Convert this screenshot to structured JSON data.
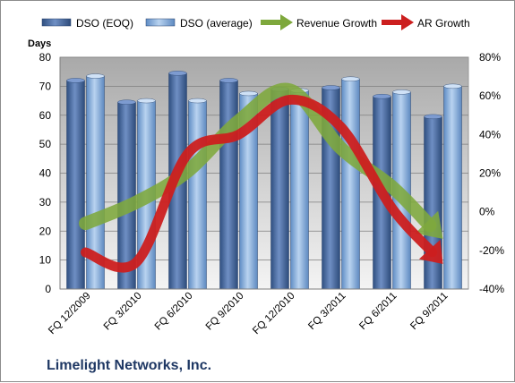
{
  "company": "Limelight Networks, Inc.",
  "chart_data": {
    "type": "bar",
    "categories": [
      "FQ 12/2009",
      "FQ 3/2010",
      "FQ 6/2010",
      "FQ 9/2010",
      "FQ 12/2010",
      "FQ 3/2011",
      "FQ 6/2011",
      "FQ 9/2011"
    ],
    "series": [
      {
        "name": "DSO (EOQ)",
        "type": "bar",
        "axis": "left",
        "color": "#4a6fa8",
        "values": [
          72,
          64.5,
          74.5,
          72,
          69,
          69.5,
          66.5,
          59.5
        ]
      },
      {
        "name": "DSO (average)",
        "type": "bar",
        "axis": "left",
        "color": "#8fb4e0",
        "values": [
          73.5,
          65,
          65,
          67.5,
          68.5,
          72.5,
          68,
          70
        ]
      },
      {
        "name": "Revenue Growth",
        "type": "line-arrow",
        "axis": "right",
        "color": "#7ea83c",
        "values": [
          -6,
          5,
          21,
          47,
          63,
          33,
          13,
          -14
        ]
      },
      {
        "name": "AR Growth",
        "type": "line-arrow",
        "axis": "right",
        "color": "#cc1f1f",
        "values": [
          -21,
          -26,
          30,
          40,
          58,
          44,
          2,
          -27
        ]
      }
    ],
    "ylabel": "Days",
    "ylim": [
      0,
      80
    ],
    "yticks": [
      "0",
      "10",
      "20",
      "30",
      "40",
      "50",
      "60",
      "70",
      "80"
    ],
    "y2lim": [
      -40,
      80
    ],
    "y2ticks": [
      "-40%",
      "-20%",
      "0%",
      "20%",
      "40%",
      "60%",
      "80%"
    ],
    "legend_position": "top",
    "grid": true
  }
}
